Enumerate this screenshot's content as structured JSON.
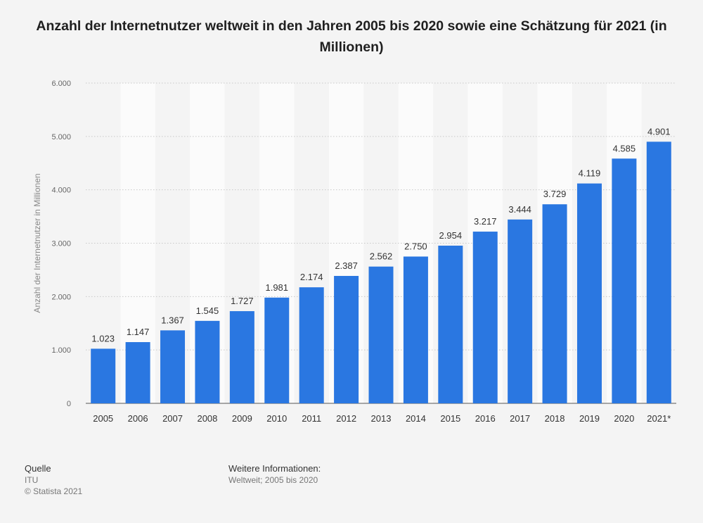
{
  "chart_data": {
    "type": "bar",
    "title": "Anzahl der Internetnutzer weltweit in den Jahren 2005 bis 2020 sowie eine Schätzung für 2021 (in Millionen)",
    "xlabel": "",
    "ylabel": "Anzahl der Internetnutzer in Millionen",
    "categories": [
      "2005",
      "2006",
      "2007",
      "2008",
      "2009",
      "2010",
      "2011",
      "2012",
      "2013",
      "2014",
      "2015",
      "2016",
      "2017",
      "2018",
      "2019",
      "2020",
      "2021*"
    ],
    "values": [
      1023,
      1147,
      1367,
      1545,
      1727,
      1981,
      2174,
      2387,
      2562,
      2750,
      2954,
      3217,
      3444,
      3729,
      4119,
      4585,
      4901
    ],
    "value_labels": [
      "1.023",
      "1.147",
      "1.367",
      "1.545",
      "1.727",
      "1.981",
      "2.174",
      "2.387",
      "2.562",
      "2.750",
      "2.954",
      "3.217",
      "3.444",
      "3.729",
      "4.119",
      "4.585",
      "4.901"
    ],
    "yticks": [
      0,
      1000,
      2000,
      3000,
      4000,
      5000,
      6000
    ],
    "ytick_labels": [
      "0",
      "1.000",
      "2.000",
      "3.000",
      "4.000",
      "5.000",
      "6.000"
    ],
    "ylim": [
      0,
      6000
    ],
    "grid": true,
    "bar_color": "#2a77e1",
    "grid_color": "#c8c8c8"
  },
  "footer": {
    "source_heading": "Quelle",
    "source_value": "ITU",
    "copyright": "© Statista 2021",
    "info_heading": "Weitere Informationen:",
    "info_value": "Weltweit; 2005 bis 2020"
  }
}
